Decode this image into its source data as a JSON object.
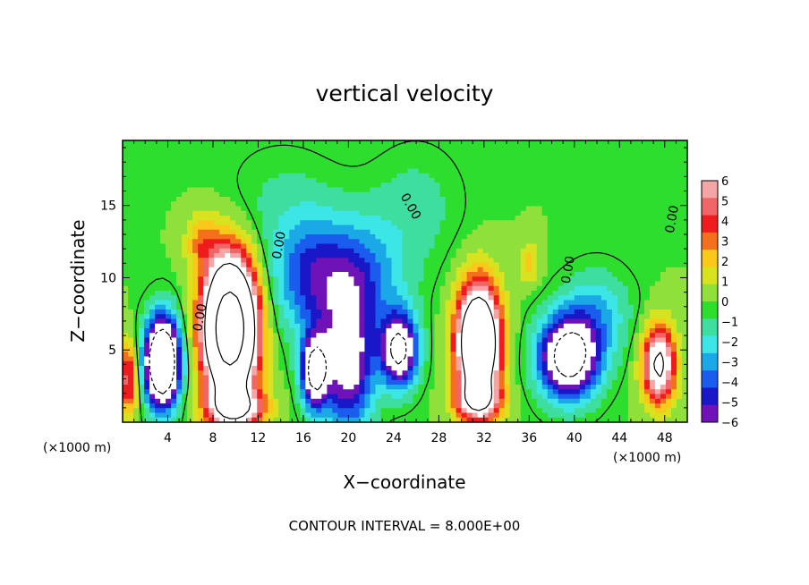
{
  "chart_data": {
    "type": "heatmap",
    "title": "vertical velocity",
    "xlabel": "X−coordinate",
    "ylabel": "Z−coordinate",
    "x_unit_left": "(×1000 m)",
    "x_unit_right": "(×1000 m)",
    "xlim": [
      0,
      50
    ],
    "ylim": [
      0,
      19.5
    ],
    "xticks": [
      4,
      8,
      12,
      16,
      20,
      24,
      28,
      32,
      36,
      40,
      44,
      48
    ],
    "yticks": [
      5,
      10,
      15
    ],
    "colorbar": {
      "ticks": [
        "6",
        "5",
        "4",
        "3",
        "2",
        "1",
        "0",
        "−1",
        "−2",
        "−3",
        "−4",
        "−5",
        "−6"
      ],
      "colors": [
        "#f4a5a5",
        "#f06565",
        "#ee1c1c",
        "#f5701c",
        "#f9c81a",
        "#d8e21e",
        "#8fe03a",
        "#2ede2e",
        "#3edea0",
        "#3ce6e6",
        "#1aa8e6",
        "#1a5cee",
        "#1818c8",
        "#6f12b8"
      ],
      "range": [
        -6,
        6
      ],
      "overflow_color": "#ffffff"
    },
    "contour_label": "0.00",
    "footer": "CONTOUR INTERVAL = 8.000E+00",
    "features": [
      {
        "x": 3.5,
        "z": 4.2,
        "w": -14,
        "sx": 1.5,
        "sz": 3.0
      },
      {
        "x": 9.5,
        "z": 6.5,
        "w": 22,
        "sx": 2.2,
        "sz": 4.5
      },
      {
        "x": 17,
        "z": 3.5,
        "w": -9,
        "sx": 1.2,
        "sz": 2.5
      },
      {
        "x": 20,
        "z": 4.0,
        "w": -7,
        "sx": 2.2,
        "sz": 4.5
      },
      {
        "x": 24.5,
        "z": 5.0,
        "w": -9,
        "sx": 1.6,
        "sz": 2.5
      },
      {
        "x": 20,
        "z": 10.0,
        "w": -4.5,
        "sx": 4.5,
        "sz": 4.0
      },
      {
        "x": 31.5,
        "z": 5.5,
        "w": 16,
        "sx": 1.8,
        "sz": 3.8
      },
      {
        "x": 39.5,
        "z": 4.5,
        "w": -10,
        "sx": 2.6,
        "sz": 2.8
      },
      {
        "x": 42,
        "z": 7.5,
        "w": -2.5,
        "sx": 3.0,
        "sz": 3.0
      },
      {
        "x": 47.5,
        "z": 4.0,
        "w": 9,
        "sx": 1.4,
        "sz": 2.6
      },
      {
        "x": 10,
        "z": 1.0,
        "w": 7,
        "sx": 2.5,
        "sz": 1.3
      },
      {
        "x": 31.5,
        "z": 1.5,
        "w": 6,
        "sx": 2.0,
        "sz": 1.3
      },
      {
        "x": 7,
        "z": 12.5,
        "w": 2.5,
        "sx": 1.5,
        "sz": 2.0
      },
      {
        "x": 36,
        "z": 11.0,
        "w": 2.0,
        "sx": 1.0,
        "sz": 1.5
      },
      {
        "x": 0.5,
        "z": 3.0,
        "w": 5,
        "sx": 0.8,
        "sz": 2.5
      },
      {
        "x": 16,
        "z": 10.0,
        "w": -2.5,
        "sx": 3.0,
        "sz": 4.0
      },
      {
        "x": 14,
        "z": 15.0,
        "w": -1.0,
        "sx": 5.0,
        "sz": 4.0
      },
      {
        "x": 26,
        "z": 15.0,
        "w": -1.2,
        "sx": 4.0,
        "sz": 4.0
      }
    ]
  }
}
